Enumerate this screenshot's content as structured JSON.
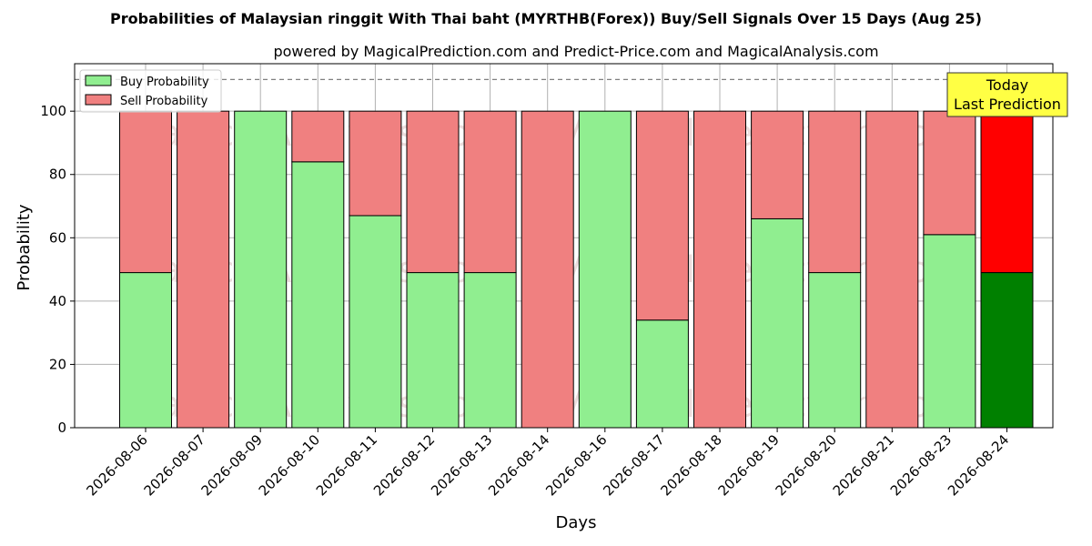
{
  "chart_data": {
    "type": "bar",
    "title": "Probabilities of Malaysian ringgit With Thai baht (MYRTHB(Forex)) Buy/Sell Signals Over 15 Days (Aug 25)",
    "subtitle": "powered by MagicalPrediction.com and Predict-Price.com and MagicalAnalysis.com",
    "xlabel": "Days",
    "ylabel": "Probability",
    "ylim": [
      0,
      115
    ],
    "yticks": [
      0,
      20,
      40,
      60,
      80,
      100
    ],
    "reference_line": 110,
    "grid": true,
    "legend_placement": "top-left",
    "stacked": true,
    "categories": [
      "2026-08-06",
      "2026-08-07",
      "2026-08-09",
      "2026-08-10",
      "2026-08-11",
      "2026-08-12",
      "2026-08-13",
      "2026-08-14",
      "2026-08-16",
      "2026-08-17",
      "2026-08-18",
      "2026-08-19",
      "2026-08-20",
      "2026-08-21",
      "2026-08-23",
      "2026-08-24"
    ],
    "series": [
      {
        "name": "Buy Probability",
        "color": "#90ee90",
        "today_color": "#008000",
        "values": [
          49,
          0,
          100,
          84,
          67,
          49,
          49,
          0,
          100,
          34,
          0,
          66,
          49,
          0,
          61,
          49
        ]
      },
      {
        "name": "Sell Probability",
        "color": "#f08080",
        "today_color": "#ff0000",
        "values": [
          51,
          100,
          0,
          16,
          33,
          51,
          51,
          100,
          0,
          66,
          100,
          34,
          51,
          100,
          39,
          51
        ]
      }
    ],
    "today_annotation": [
      "Today",
      "Last Prediction"
    ],
    "watermarks": [
      "MagicalAnalysis.com",
      "MagicalPrediction.com"
    ]
  }
}
